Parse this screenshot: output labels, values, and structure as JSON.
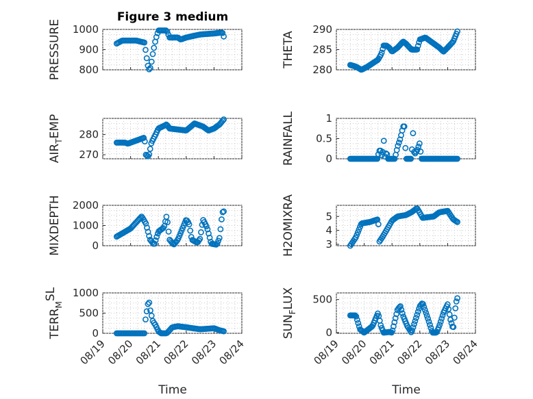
{
  "figure": {
    "title": "Figure 3 medium",
    "xlabel": "Time",
    "x_tick_labels": [
      "08/19",
      "08/20",
      "08/21",
      "08/22",
      "08/23",
      "08/24"
    ],
    "x_range_days": [
      0,
      5
    ],
    "marker_color": "#0072bd",
    "marker": "open-circle",
    "grid": "minor-dotted"
  },
  "chart_data": [
    {
      "type": "scatter",
      "id": "pressure",
      "ylabel": "PRESSURE",
      "sub": "",
      "ylim": [
        800,
        1000
      ],
      "yticks": [
        800,
        900,
        1000
      ],
      "knots": [
        [
          0.5,
          930
        ],
        [
          0.7,
          945
        ],
        [
          1.2,
          945
        ],
        [
          1.5,
          935
        ],
        [
          1.6,
          840
        ],
        [
          1.65,
          800
        ],
        [
          1.72,
          810
        ],
        [
          1.8,
          880
        ],
        [
          1.9,
          950
        ],
        [
          2.0,
          995
        ],
        [
          2.3,
          995
        ],
        [
          2.4,
          960
        ],
        [
          2.7,
          960
        ],
        [
          2.8,
          950
        ],
        [
          3.0,
          960
        ],
        [
          3.5,
          975
        ],
        [
          4.0,
          980
        ],
        [
          4.3,
          985
        ],
        [
          4.35,
          965
        ]
      ],
      "n": 90
    },
    {
      "type": "scatter",
      "id": "theta",
      "ylabel": "THETA",
      "sub": "",
      "ylim": [
        280,
        290
      ],
      "yticks": [
        280,
        285,
        290
      ],
      "knots": [
        [
          0.5,
          281.2
        ],
        [
          0.7,
          280.8
        ],
        [
          0.9,
          280
        ],
        [
          1.1,
          280.7
        ],
        [
          1.5,
          282.5
        ],
        [
          1.62,
          284
        ],
        [
          1.7,
          286
        ],
        [
          1.8,
          286
        ],
        [
          1.9,
          285.5
        ],
        [
          2.0,
          284.5
        ],
        [
          2.2,
          285.5
        ],
        [
          2.4,
          287
        ],
        [
          2.5,
          286.5
        ],
        [
          2.7,
          285
        ],
        [
          2.9,
          285
        ],
        [
          3.0,
          287.5
        ],
        [
          3.2,
          288
        ],
        [
          3.5,
          286.5
        ],
        [
          3.7,
          285.5
        ],
        [
          3.85,
          284.5
        ],
        [
          4.0,
          285.5
        ],
        [
          4.2,
          287
        ],
        [
          4.35,
          289.5
        ]
      ],
      "n": 110
    },
    {
      "type": "scatter",
      "id": "air_temp",
      "ylabel": "AIR",
      "sub": "T",
      "ysuffix": "EMP",
      "ylim": [
        268,
        288
      ],
      "yticks": [
        270,
        280
      ],
      "knots": [
        [
          0.5,
          276
        ],
        [
          0.8,
          276
        ],
        [
          0.9,
          275.5
        ],
        [
          1.2,
          277
        ],
        [
          1.5,
          278.5
        ],
        [
          1.55,
          270
        ],
        [
          1.65,
          269
        ],
        [
          1.75,
          276
        ],
        [
          1.9,
          280
        ],
        [
          2.0,
          283
        ],
        [
          2.3,
          285
        ],
        [
          2.4,
          283
        ],
        [
          2.7,
          282.5
        ],
        [
          3.0,
          282
        ],
        [
          3.3,
          285.5
        ],
        [
          3.6,
          284
        ],
        [
          3.8,
          282
        ],
        [
          4.0,
          283
        ],
        [
          4.2,
          285
        ],
        [
          4.35,
          287.5
        ]
      ],
      "n": 100
    },
    {
      "type": "scatter",
      "id": "rainfall",
      "ylabel": "RAINFALL",
      "sub": "",
      "ylim": [
        0,
        1
      ],
      "yticks": [
        0,
        0.5,
        1
      ],
      "knots": [
        [
          0.5,
          0
        ],
        [
          1.5,
          0
        ],
        [
          1.52,
          0.2
        ],
        [
          1.6,
          0.2
        ],
        [
          1.65,
          0
        ],
        [
          1.7,
          0.5
        ],
        [
          1.75,
          0
        ],
        [
          1.8,
          0.2
        ],
        [
          1.85,
          0
        ],
        [
          2.0,
          0
        ],
        [
          2.1,
          0
        ],
        [
          2.2,
          0.3
        ],
        [
          2.3,
          0.5
        ],
        [
          2.4,
          0.8
        ],
        [
          2.45,
          0.8
        ],
        [
          2.5,
          0
        ],
        [
          2.7,
          0
        ],
        [
          2.75,
          0.7
        ],
        [
          2.8,
          0.1
        ],
        [
          2.9,
          0.2
        ],
        [
          3.0,
          0.4
        ],
        [
          3.05,
          0
        ],
        [
          4.35,
          0
        ]
      ],
      "n": 100
    },
    {
      "type": "scatter",
      "id": "mixdepth",
      "ylabel": "MIXDEPTH",
      "sub": "",
      "ylim": [
        0,
        2000
      ],
      "yticks": [
        0,
        1000,
        2000
      ],
      "knots": [
        [
          0.5,
          450
        ],
        [
          1.0,
          850
        ],
        [
          1.4,
          1450
        ],
        [
          1.55,
          1100
        ],
        [
          1.7,
          300
        ],
        [
          1.85,
          50
        ],
        [
          2.0,
          700
        ],
        [
          2.2,
          900
        ],
        [
          2.3,
          1500
        ],
        [
          2.4,
          300
        ],
        [
          2.55,
          50
        ],
        [
          2.7,
          300
        ],
        [
          3.0,
          1300
        ],
        [
          3.1,
          1100
        ],
        [
          3.2,
          300
        ],
        [
          3.4,
          150
        ],
        [
          3.5,
          350
        ],
        [
          3.6,
          1300
        ],
        [
          3.75,
          900
        ],
        [
          3.9,
          100
        ],
        [
          4.1,
          50
        ],
        [
          4.2,
          400
        ],
        [
          4.3,
          1650
        ],
        [
          4.35,
          1700
        ]
      ],
      "n": 100
    },
    {
      "type": "scatter",
      "id": "h2omixra",
      "ylabel": "H2OMIXRA",
      "sub": "",
      "ylim": [
        2.9,
        5.8
      ],
      "yticks": [
        3,
        4,
        5
      ],
      "knots": [
        [
          0.5,
          2.9
        ],
        [
          0.7,
          3.5
        ],
        [
          0.9,
          4.5
        ],
        [
          1.2,
          4.6
        ],
        [
          1.5,
          4.8
        ],
        [
          1.55,
          3.2
        ],
        [
          1.65,
          3.5
        ],
        [
          1.8,
          4
        ],
        [
          2.0,
          4.7
        ],
        [
          2.2,
          5.0
        ],
        [
          2.5,
          5.1
        ],
        [
          2.7,
          5.3
        ],
        [
          2.9,
          5.6
        ],
        [
          3.1,
          4.9
        ],
        [
          3.5,
          5.0
        ],
        [
          3.7,
          5.3
        ],
        [
          4.0,
          5.4
        ],
        [
          4.2,
          4.8
        ],
        [
          4.35,
          4.6
        ]
      ],
      "n": 100
    },
    {
      "type": "scatter",
      "id": "terr_msl",
      "ylabel": "TERR",
      "sub": "M",
      "ysuffix": "SL",
      "sup": true,
      "ylim": [
        0,
        1000
      ],
      "yticks": [
        0,
        500,
        1000
      ],
      "knots": [
        [
          0.5,
          0
        ],
        [
          1.5,
          0
        ],
        [
          1.55,
          450
        ],
        [
          1.6,
          600
        ],
        [
          1.65,
          850
        ],
        [
          1.7,
          600
        ],
        [
          1.8,
          300
        ],
        [
          1.9,
          200
        ],
        [
          2.0,
          50
        ],
        [
          2.1,
          0
        ],
        [
          2.3,
          0
        ],
        [
          2.5,
          150
        ],
        [
          2.7,
          175
        ],
        [
          3.0,
          150
        ],
        [
          3.5,
          100
        ],
        [
          4.0,
          125
        ],
        [
          4.2,
          75
        ],
        [
          4.35,
          50
        ]
      ],
      "n": 90
    },
    {
      "type": "scatter",
      "id": "sun_flux",
      "ylabel": "SUN",
      "sub": "F",
      "ysuffix": "LUX",
      "ylim": [
        -10,
        600
      ],
      "yticks": [
        0,
        500
      ],
      "knots": [
        [
          0.5,
          260
        ],
        [
          0.7,
          260
        ],
        [
          0.85,
          50
        ],
        [
          1.0,
          0
        ],
        [
          1.3,
          100
        ],
        [
          1.5,
          300
        ],
        [
          1.6,
          100
        ],
        [
          1.7,
          0
        ],
        [
          1.9,
          10
        ],
        [
          2.0,
          0
        ],
        [
          2.2,
          350
        ],
        [
          2.3,
          400
        ],
        [
          2.4,
          250
        ],
        [
          2.55,
          100
        ],
        [
          2.7,
          0
        ],
        [
          2.85,
          200
        ],
        [
          3.0,
          400
        ],
        [
          3.1,
          450
        ],
        [
          3.3,
          200
        ],
        [
          3.45,
          0
        ],
        [
          3.6,
          0
        ],
        [
          3.7,
          100
        ],
        [
          3.85,
          300
        ],
        [
          4.0,
          430
        ],
        [
          4.1,
          200
        ],
        [
          4.2,
          50
        ],
        [
          4.3,
          450
        ],
        [
          4.35,
          520
        ]
      ],
      "n": 110
    }
  ]
}
